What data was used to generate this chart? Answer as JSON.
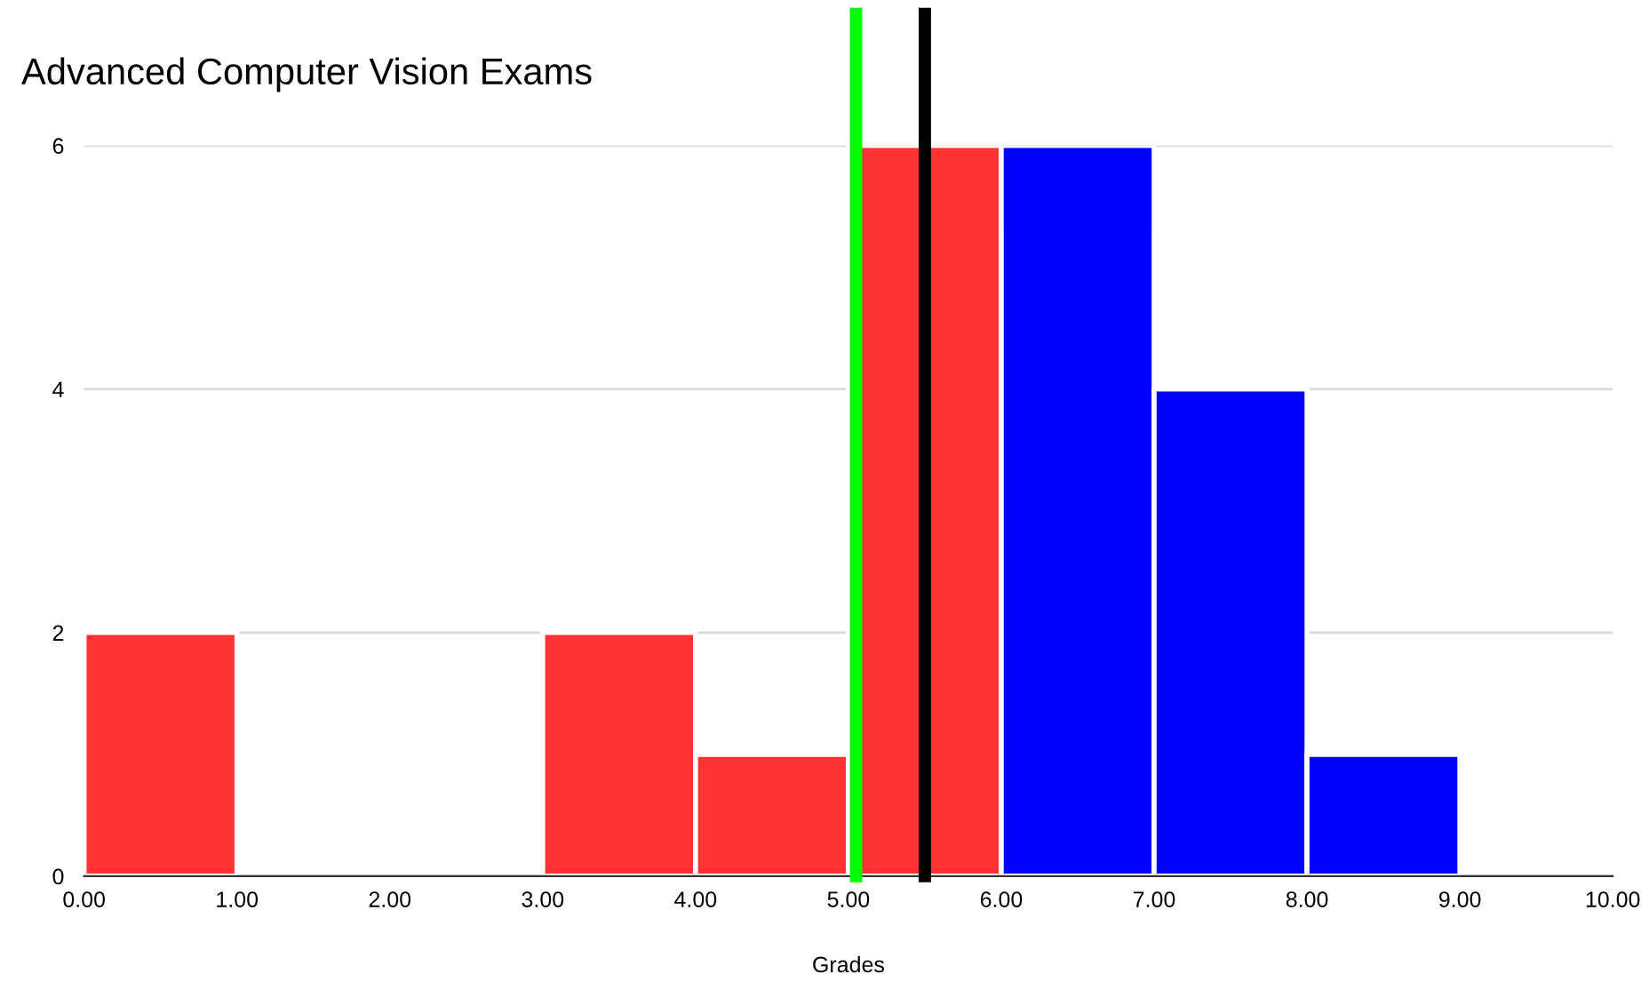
{
  "chart_data": {
    "type": "histogram",
    "title": "Advanced Computer Vision Exams",
    "xlabel": "Grades",
    "bins": [
      0,
      1,
      2,
      3,
      4,
      5,
      6,
      7,
      8,
      9,
      10
    ],
    "values": [
      2,
      0,
      0,
      2,
      1,
      6,
      6,
      4,
      1,
      0
    ],
    "colors": [
      "#ff3333",
      "#ff3333",
      "#ff3333",
      "#ff3333",
      "#ff3333",
      "#ff3333",
      "#0000ff",
      "#0000ff",
      "#0000ff",
      "#0000ff"
    ],
    "xlim": [
      0,
      10
    ],
    "xticks": [
      {
        "value": 0,
        "label": "0.00"
      },
      {
        "value": 1,
        "label": "1.00"
      },
      {
        "value": 2,
        "label": "2.00"
      },
      {
        "value": 3,
        "label": "3.00"
      },
      {
        "value": 4,
        "label": "4.00"
      },
      {
        "value": 5,
        "label": "5.00"
      },
      {
        "value": 6,
        "label": "6.00"
      },
      {
        "value": 7,
        "label": "7.00"
      },
      {
        "value": 8,
        "label": "8.00"
      },
      {
        "value": 9,
        "label": "9.00"
      },
      {
        "value": 10,
        "label": "10.00"
      }
    ],
    "ylim": [
      0,
      6
    ],
    "yticks": [
      0,
      2,
      4,
      6
    ],
    "grid": "y",
    "ref_lines": [
      {
        "axis": "x",
        "value": 5.05,
        "color": "#00ff00"
      },
      {
        "axis": "x",
        "value": 5.5,
        "color": "#000000"
      }
    ]
  }
}
